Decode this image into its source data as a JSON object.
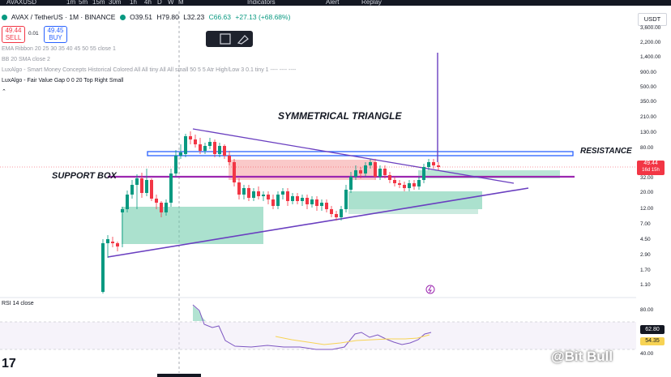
{
  "topbar": {
    "symbol": "AVAXUSD",
    "intervals": [
      "1m",
      "5m",
      "15m",
      "30m",
      "1h",
      "4h",
      "D",
      "W",
      "M"
    ],
    "indicators_label": "Indicators",
    "alert_label": "Alert",
    "replay_label": "Replay"
  },
  "header": {
    "title": "AVAX / TetherUS · 1M · BINANCE",
    "open": "O39.51",
    "high": "H79.80",
    "low": "L32.23",
    "close": "C66.63",
    "change": "+27.13 (+68.68%)"
  },
  "trade": {
    "sell_price": "49.44",
    "sell_label": "SELL",
    "spread": "0.01",
    "buy_price": "49.45",
    "buy_label": "BUY"
  },
  "indicators": {
    "ema": "EMA Ribbon 20 25 30 35 40 45 50 55 close 1",
    "bb": "BB 20 SMA close 2",
    "smc": "LuxAlgo - Smart Money Concepts Historical Colored All All tiny All All small 50 5 5 Atr High/Low 3 0.1 tiny 1 ---- ---- ----",
    "fvg": "LuxAlgo - Fair Value Gap 0 0 20 Top Right Small",
    "rsi": "RSI 14 close"
  },
  "annotations": {
    "triangle": "SYMMETRICAL TRIANGLE",
    "support": "SUPPORT BOX",
    "resistance": "RESISTANCE"
  },
  "price_scale": {
    "currency": "USDT",
    "labels": [
      "3,600.00",
      "2,200.00",
      "1,400.00",
      "900.00",
      "500.00",
      "350.00",
      "210.00",
      "130.00",
      "80.00",
      "32.00",
      "20.00",
      "12.00",
      "7.00",
      "4.50",
      "2.90",
      "1.70",
      "1.10"
    ],
    "last_price": "49.44",
    "countdown": "16d 15h"
  },
  "rsi_scale": {
    "labels": [
      "80.00",
      "40.00"
    ],
    "value": "62.80",
    "ma_value": "54.35"
  },
  "watermark": "@Bit Bull",
  "colors": {
    "up": "#089981",
    "down": "#f23645",
    "trendline": "#6a3fc0",
    "resistance_blue": "#2962ff",
    "support_zone": "#66c8a5",
    "bear_zone": "#f7a5a5"
  }
}
